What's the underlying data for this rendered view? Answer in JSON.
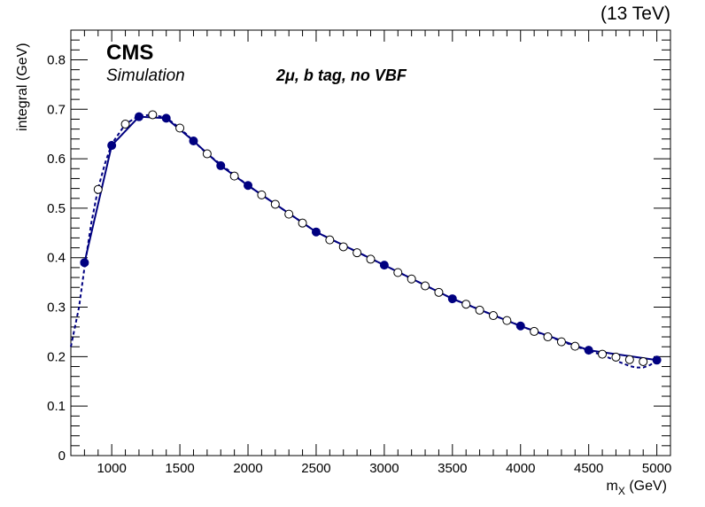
{
  "chart_data": {
    "type": "scatter",
    "title": "",
    "energy_label": "(13 TeV)",
    "experiment_label": "CMS",
    "status_label": "Simulation",
    "category_label": "2μ, b tag, no VBF",
    "xlabel": "m",
    "xlabel_sub": "X",
    "xlabel_unit": " (GeV)",
    "ylabel": "integral (GeV)",
    "xlim": [
      700,
      5100
    ],
    "ylim": [
      0,
      0.86
    ],
    "x_ticks": [
      1000,
      1500,
      2000,
      2500,
      3000,
      3500,
      4000,
      4500,
      5000
    ],
    "x_tick_labels": [
      "1000",
      "1500",
      "2000",
      "2500",
      "3000",
      "3500",
      "4000",
      "4500",
      "5000"
    ],
    "y_ticks": [
      0,
      0.1,
      0.2,
      0.3,
      0.4,
      0.5,
      0.6,
      0.7,
      0.8
    ],
    "y_tick_labels": [
      "0",
      "0.1",
      "0.2",
      "0.3",
      "0.4",
      "0.5",
      "0.6",
      "0.7",
      "0.8"
    ],
    "grid": false,
    "color": "#000080",
    "series": [
      {
        "marker": "filled",
        "line": "solid",
        "x": [
          800,
          1000,
          1200,
          1400,
          1600,
          1800,
          2000,
          2500,
          3000,
          3500,
          4000,
          4500,
          5000
        ],
        "y": [
          0.39,
          0.627,
          0.685,
          0.682,
          0.636,
          0.586,
          0.546,
          0.452,
          0.385,
          0.317,
          0.262,
          0.213,
          0.193
        ]
      },
      {
        "marker": "open",
        "line": "dashed",
        "x": [
          900,
          1100,
          1300,
          1500,
          1700,
          1900,
          2100,
          2200,
          2300,
          2400,
          2600,
          2700,
          2800,
          2900,
          3100,
          3200,
          3300,
          3400,
          3600,
          3700,
          3800,
          3900,
          4100,
          4200,
          4300,
          4400,
          4600,
          4700,
          4800,
          4900
        ],
        "y": [
          0.538,
          0.67,
          0.689,
          0.662,
          0.61,
          0.565,
          0.527,
          0.508,
          0.488,
          0.47,
          0.436,
          0.422,
          0.41,
          0.397,
          0.37,
          0.357,
          0.343,
          0.33,
          0.306,
          0.294,
          0.283,
          0.273,
          0.251,
          0.24,
          0.23,
          0.221,
          0.205,
          0.199,
          0.194,
          0.19
        ]
      }
    ],
    "dashed_curve": {
      "x": [
        700,
        760,
        800,
        850,
        900,
        950,
        1000,
        1100,
        1200,
        1300,
        1400,
        1500,
        1700,
        2000,
        2500,
        3000,
        3500,
        4000,
        4400,
        4600,
        4700,
        4800,
        4850,
        4900,
        4950,
        5000
      ],
      "y": [
        0.22,
        0.3,
        0.38,
        0.47,
        0.54,
        0.59,
        0.63,
        0.67,
        0.687,
        0.689,
        0.683,
        0.662,
        0.61,
        0.546,
        0.452,
        0.385,
        0.317,
        0.262,
        0.221,
        0.203,
        0.192,
        0.181,
        0.178,
        0.178,
        0.183,
        0.192
      ]
    }
  }
}
